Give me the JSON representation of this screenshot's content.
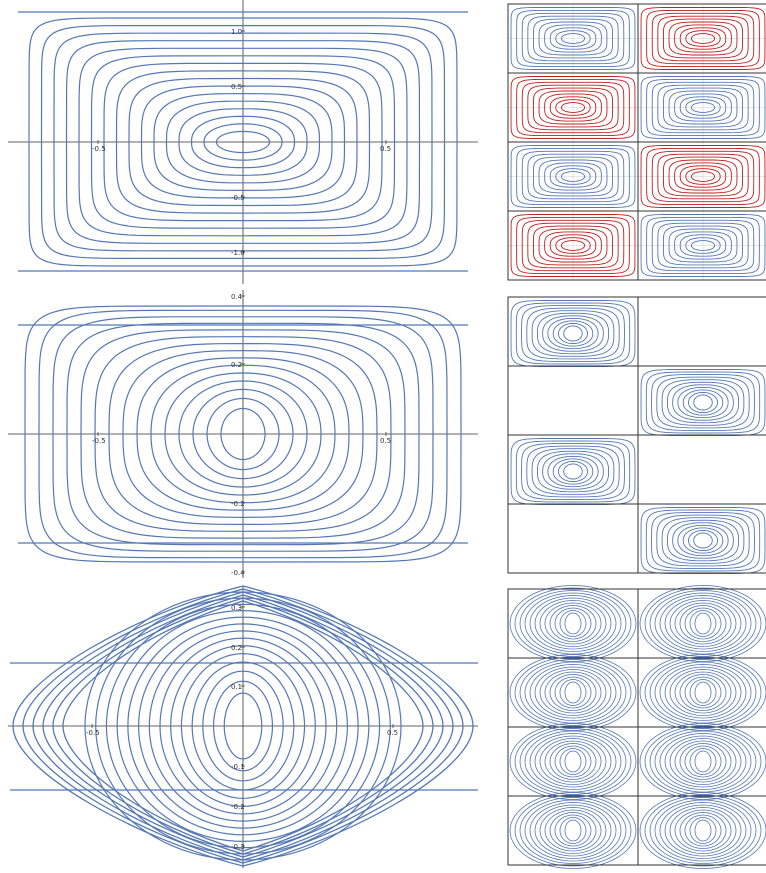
{
  "colors": {
    "curve": "#5578b5",
    "curve_alt": "#c21f1f",
    "axis": "#333333",
    "tile_border": "#333333",
    "background": "#ffffff"
  },
  "left_panels": [
    {
      "name": "phase-portrait-top",
      "x_ticks": [
        "-0.5",
        "0.5"
      ],
      "y_ticks": [
        "1.0",
        "0.5",
        "-0.5",
        "-1.0"
      ]
    },
    {
      "name": "phase-portrait-middle",
      "x_ticks": [
        "-0.5",
        "0.5"
      ],
      "y_ticks": [
        "0.4",
        "0.2",
        "-0.2",
        "-0.4"
      ]
    },
    {
      "name": "phase-portrait-bottom",
      "x_ticks": [
        "-0.5",
        "0.5"
      ],
      "y_ticks": [
        "0.3",
        "0.2",
        "0.1",
        "-0.1",
        "-0.2",
        "-0.3"
      ]
    }
  ],
  "right_panels": [
    {
      "name": "tiling-top",
      "rows": 4,
      "cols": 2,
      "pattern": "checker-red-blue"
    },
    {
      "name": "tiling-middle",
      "rows": 4,
      "cols": 2,
      "pattern": "staggered-bumps"
    },
    {
      "name": "tiling-bottom",
      "rows": 4,
      "cols": 2,
      "pattern": "hourglass"
    }
  ]
}
